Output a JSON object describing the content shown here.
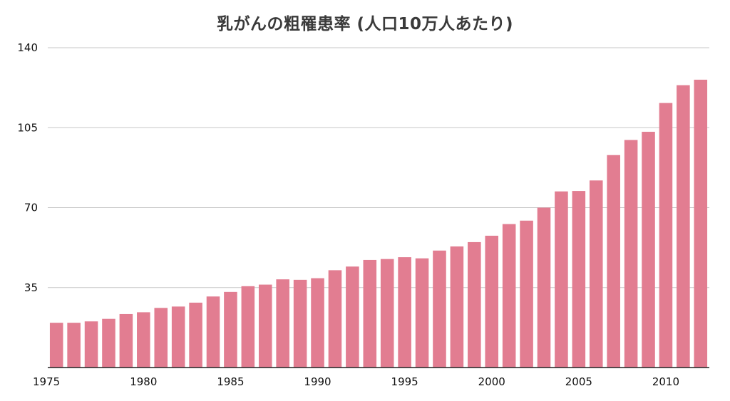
{
  "chart_data": {
    "type": "bar",
    "title": "乳がんの粗罹患率 (人口10万人あたり)",
    "xlabel": "",
    "ylabel": "",
    "ylim": [
      0,
      140
    ],
    "yticks": [
      35,
      70,
      105,
      140
    ],
    "x_tick_labels": [
      "1975",
      "1980",
      "1985",
      "1990",
      "1995",
      "2000",
      "2005",
      "2010"
    ],
    "grid": true,
    "legend": "none",
    "color": "#e27d91",
    "categories": [
      1975,
      1976,
      1977,
      1978,
      1979,
      1980,
      1981,
      1982,
      1983,
      1984,
      1985,
      1986,
      1987,
      1988,
      1989,
      1990,
      1991,
      1992,
      1993,
      1994,
      1995,
      1996,
      1997,
      1998,
      1999,
      2000,
      2001,
      2002,
      2003,
      2004,
      2005,
      2006,
      2007,
      2008,
      2009,
      2010,
      2011,
      2012
    ],
    "values": [
      19.6,
      19.6,
      20.2,
      21.3,
      23.4,
      24.2,
      26.1,
      26.7,
      28.4,
      31.1,
      33.1,
      35.6,
      36.3,
      38.6,
      38.4,
      39.1,
      42.6,
      44.2,
      47.1,
      47.5,
      48.3,
      47.8,
      51.2,
      53.0,
      54.9,
      57.7,
      62.8,
      64.3,
      70.0,
      77.1,
      77.3,
      81.9,
      93.0,
      99.6,
      103.2,
      115.8,
      123.6,
      126.0
    ]
  }
}
